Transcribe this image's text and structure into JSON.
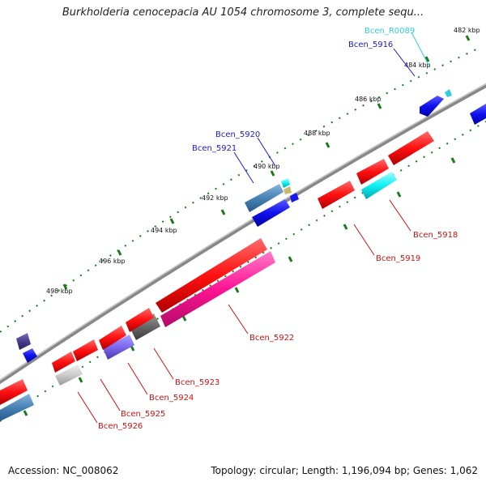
{
  "title": "Burkholderia cenocepacia AU 1054 chromosome 3, complete sequ...",
  "footer": {
    "accession": "Accession: NC_008062",
    "summary": "Topology: circular; Length: 1,196,094 bp; Genes: 1,062"
  },
  "ticks": [
    "482 kbp",
    "484 kbp",
    "486 kbp",
    "488 kbp",
    "490 kbp",
    "492 kbp",
    "494 kbp",
    "496 kbp",
    "498 kbp"
  ],
  "genes": [
    {
      "name": "Bcen_R0089",
      "color": "#33ccdd"
    },
    {
      "name": "Bcen_5916",
      "color": "#1a1acc"
    },
    {
      "name": "Bcen_5920",
      "color": "#1a1acc"
    },
    {
      "name": "Bcen_5921",
      "color": "#1a1acc"
    },
    {
      "name": "Bcen_5918",
      "color": "#cc1111"
    },
    {
      "name": "Bcen_5919",
      "color": "#cc1111"
    },
    {
      "name": "Bcen_5922",
      "color": "#cc1111"
    },
    {
      "name": "Bcen_5923",
      "color": "#cc1111"
    },
    {
      "name": "Bcen_5924",
      "color": "#cc1111"
    },
    {
      "name": "Bcen_5925",
      "color": "#cc1111"
    },
    {
      "name": "Bcen_5926",
      "color": "#cc1111"
    }
  ]
}
